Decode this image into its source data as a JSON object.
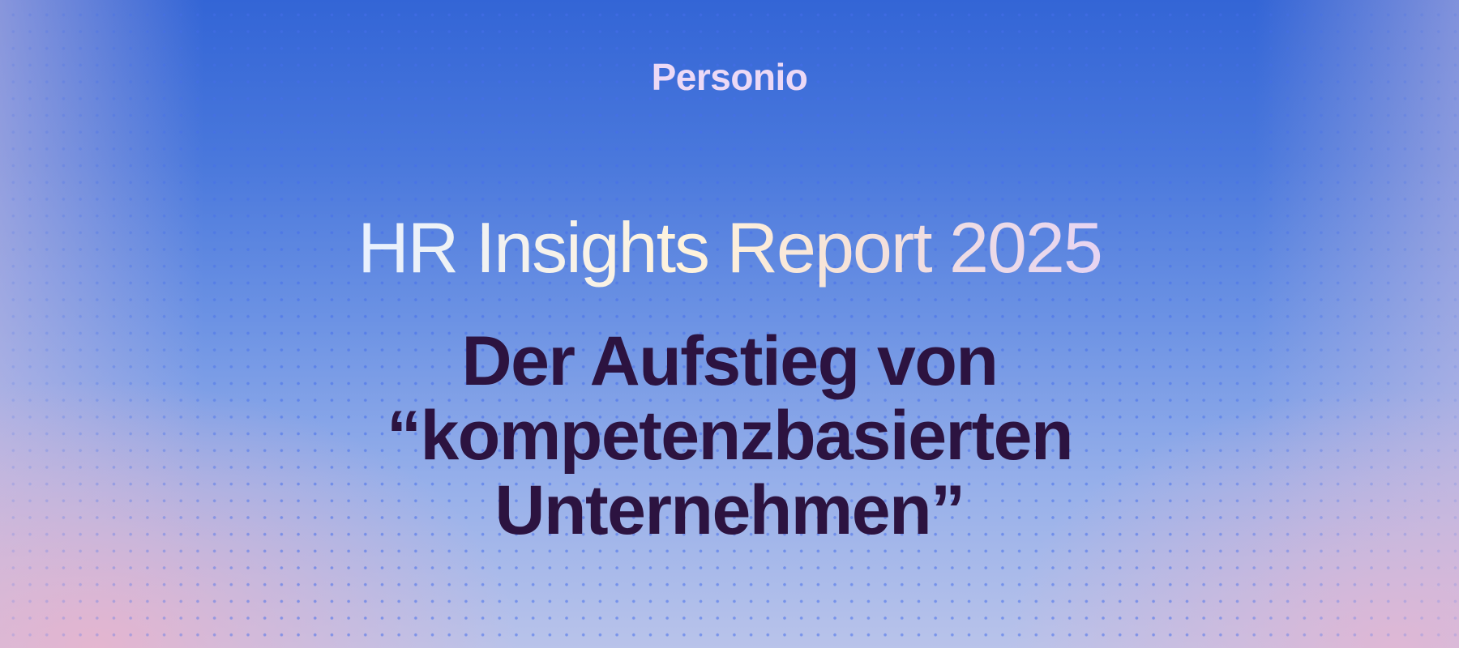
{
  "brand": {
    "logo_text": "Personio"
  },
  "hero": {
    "title": "HR Insights Report 2025",
    "subtitle_lines": [
      "Der Aufstieg von",
      "“kompetenzbasierten",
      "Unternehmen”"
    ]
  },
  "colors": {
    "background_top": "#3365d6",
    "background_bottom": "#b9c3ea",
    "corner_glow": "#e8b4cd",
    "title_text": "#fff3dc",
    "subtitle_text": "#2c1340",
    "logo_text": "#ecd9f6"
  }
}
